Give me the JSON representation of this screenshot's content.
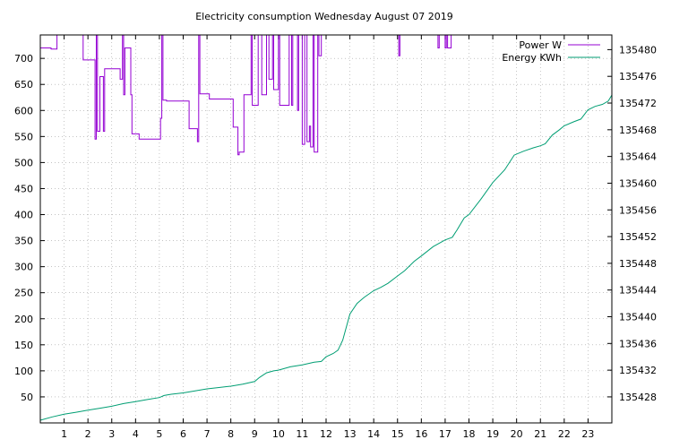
{
  "chart_data": {
    "type": "line",
    "title": "Electricity consumption Wednesday August 07 2019",
    "xlabel": "",
    "ylabel": "",
    "y2label": "",
    "xlim": [
      0,
      24
    ],
    "ylim": [
      0,
      745
    ],
    "y2lim": [
      135424.1,
      135482.2
    ],
    "x_ticks": [
      "1",
      "2",
      "3",
      "4",
      "5",
      "6",
      "7",
      "8",
      "9",
      "10",
      "11",
      "12",
      "13",
      "14",
      "15",
      "16",
      "17",
      "18",
      "19",
      "20",
      "21",
      "22",
      "23"
    ],
    "y_ticks": [
      "50",
      "100",
      "150",
      "200",
      "250",
      "300",
      "350",
      "400",
      "450",
      "500",
      "550",
      "600",
      "650",
      "700"
    ],
    "y2_ticks": [
      "135428",
      "135432",
      "135436",
      "135440",
      "135444",
      "135448",
      "135452",
      "135456",
      "135460",
      "135464",
      "135468",
      "135472",
      "135476",
      "135480"
    ],
    "grid": true,
    "legend_position": "top-right",
    "colors": {
      "power": "#9400d3",
      "energy": "#009e73"
    },
    "series": [
      {
        "name": "Power W",
        "axis": "y",
        "steps": [
          [
            0.0,
            720
          ],
          [
            0.45,
            718
          ],
          [
            0.7,
            745
          ],
          [
            1.8,
            697
          ],
          [
            2.25,
            697
          ],
          [
            2.3,
            545
          ],
          [
            2.35,
            745
          ],
          [
            2.4,
            560
          ],
          [
            2.5,
            665
          ],
          [
            2.6,
            665
          ],
          [
            2.65,
            560
          ],
          [
            2.7,
            680
          ],
          [
            3.3,
            680
          ],
          [
            3.35,
            660
          ],
          [
            3.45,
            745
          ],
          [
            3.5,
            630
          ],
          [
            3.55,
            720
          ],
          [
            3.75,
            720
          ],
          [
            3.8,
            630
          ],
          [
            3.85,
            555
          ],
          [
            4.1,
            555
          ],
          [
            4.15,
            545
          ],
          [
            5.0,
            545
          ],
          [
            5.05,
            585
          ],
          [
            5.1,
            745
          ],
          [
            5.15,
            620
          ],
          [
            5.3,
            618
          ],
          [
            6.2,
            618
          ],
          [
            6.25,
            565
          ],
          [
            6.55,
            565
          ],
          [
            6.6,
            540
          ],
          [
            6.65,
            745
          ],
          [
            6.7,
            632
          ],
          [
            7.0,
            632
          ],
          [
            7.1,
            622
          ],
          [
            8.0,
            622
          ],
          [
            8.1,
            568
          ],
          [
            8.25,
            568
          ],
          [
            8.3,
            515
          ],
          [
            8.35,
            520
          ],
          [
            8.5,
            520
          ],
          [
            8.55,
            630
          ],
          [
            8.8,
            630
          ],
          [
            8.85,
            745
          ],
          [
            8.9,
            610
          ],
          [
            9.1,
            610
          ],
          [
            9.15,
            745
          ],
          [
            9.3,
            630
          ],
          [
            9.5,
            745
          ],
          [
            9.6,
            660
          ],
          [
            9.75,
            745
          ],
          [
            9.8,
            640
          ],
          [
            10.0,
            745
          ],
          [
            10.05,
            610
          ],
          [
            10.4,
            610
          ],
          [
            10.45,
            745
          ],
          [
            10.55,
            610
          ],
          [
            10.6,
            745
          ],
          [
            10.8,
            600
          ],
          [
            10.85,
            745
          ],
          [
            11.0,
            535
          ],
          [
            11.1,
            745
          ],
          [
            11.2,
            540
          ],
          [
            11.3,
            570
          ],
          [
            11.35,
            530
          ],
          [
            11.45,
            745
          ],
          [
            11.5,
            520
          ],
          [
            11.65,
            745
          ],
          [
            11.7,
            705
          ],
          [
            11.8,
            745
          ],
          [
            15.0,
            745
          ],
          [
            15.05,
            705
          ],
          [
            15.1,
            745
          ],
          [
            16.65,
            745
          ],
          [
            16.7,
            720
          ],
          [
            16.75,
            745
          ],
          [
            16.95,
            745
          ],
          [
            17.0,
            720
          ],
          [
            17.05,
            745
          ],
          [
            17.1,
            720
          ],
          [
            17.2,
            720
          ],
          [
            17.25,
            745
          ],
          [
            24.0,
            745
          ]
        ]
      },
      {
        "name": "Energy KWh",
        "axis": "y2",
        "x": [
          0.0,
          0.5,
          1.0,
          1.5,
          2.0,
          2.5,
          3.0,
          3.5,
          4.0,
          4.5,
          5.0,
          5.2,
          5.5,
          6.0,
          6.5,
          7.0,
          7.5,
          8.0,
          8.5,
          9.0,
          9.2,
          9.5,
          9.8,
          10.0,
          10.5,
          11.0,
          11.5,
          11.8,
          12.0,
          12.3,
          12.5,
          12.7,
          13.0,
          13.3,
          13.6,
          14.0,
          14.3,
          14.6,
          15.0,
          15.3,
          15.7,
          16.0,
          16.5,
          17.0,
          17.3,
          17.5,
          17.8,
          18.0,
          18.5,
          19.0,
          19.5,
          19.9,
          20.3,
          20.7,
          21.0,
          21.2,
          21.5,
          21.8,
          22.0,
          22.4,
          22.7,
          23.0,
          23.3,
          23.6,
          23.85,
          24.0
        ],
        "y": [
          135424.5,
          135425.0,
          135425.4,
          135425.7,
          135426.0,
          135426.3,
          135426.6,
          135427.0,
          135427.3,
          135427.6,
          135427.9,
          135428.2,
          135428.4,
          135428.6,
          135428.9,
          135429.2,
          135429.4,
          135429.6,
          135429.9,
          135430.3,
          135430.9,
          135431.6,
          135431.9,
          135432.0,
          135432.5,
          135432.8,
          135433.2,
          135433.3,
          135434.0,
          135434.5,
          135435.0,
          135436.5,
          135440.4,
          135442.0,
          135442.9,
          135443.9,
          135444.4,
          135445.0,
          135446.1,
          135446.9,
          135448.3,
          135449.1,
          135450.5,
          135451.5,
          135451.9,
          135453.0,
          135454.8,
          135455.3,
          135457.6,
          135460.1,
          135462.0,
          135464.2,
          135464.8,
          135465.3,
          135465.6,
          135465.9,
          135467.2,
          135468.0,
          135468.6,
          135469.2,
          135469.6,
          135471.0,
          135471.5,
          135471.8,
          135472.3,
          135473.2
        ]
      }
    ]
  }
}
